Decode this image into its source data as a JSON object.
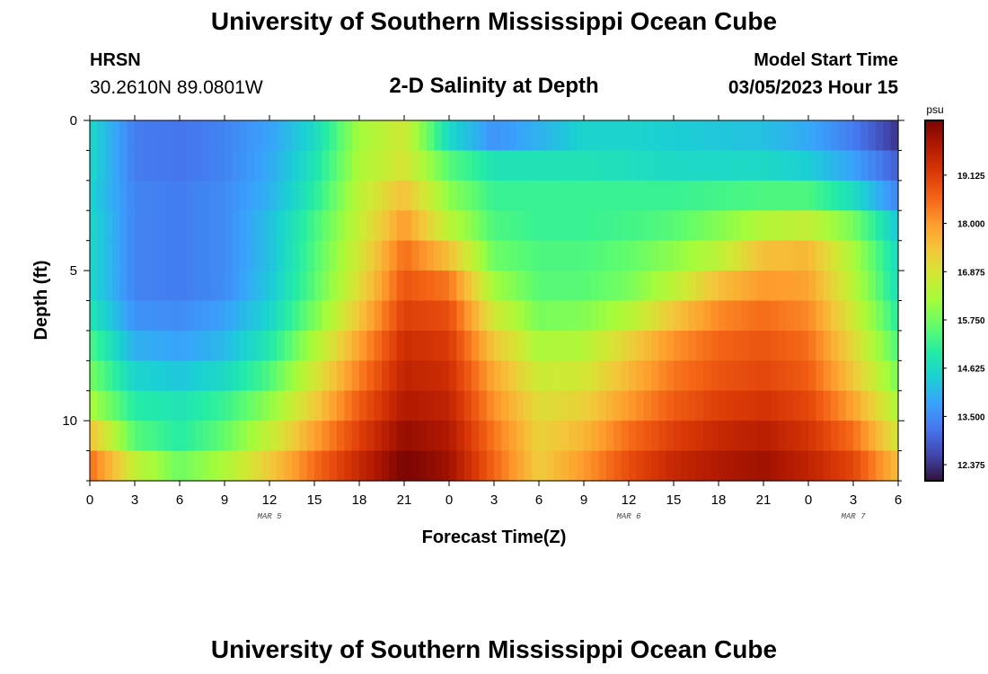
{
  "header": {
    "title": "University of Southern Mississippi Ocean Cube",
    "station": "HRSN",
    "coords": "30.2610N  89.0801W",
    "subtitle": "2-D Salinity at Depth",
    "model_start_label": "Model Start Time",
    "model_start_value": "03/05/2023 Hour 15"
  },
  "footer": {
    "title": "University of Southern Mississippi Ocean Cube"
  },
  "chart_data": {
    "type": "heatmap",
    "title": "2-D Salinity at Depth",
    "xlabel": "Forecast Time(Z)",
    "ylabel": "Depth (ft)",
    "x_range_hours": [
      0,
      54
    ],
    "y_range_ft": [
      0,
      12
    ],
    "y_ticks": [
      0,
      5,
      10
    ],
    "x_tick_labels": [
      "0",
      "3",
      "6",
      "9",
      "12",
      "15",
      "18",
      "21",
      "0",
      "3",
      "6",
      "9",
      "12",
      "15",
      "18",
      "21",
      "0",
      "3",
      "6"
    ],
    "date_labels": [
      {
        "text": "MAR 5",
        "hour": 12
      },
      {
        "text": "MAR 6",
        "hour": 36
      },
      {
        "text": "MAR 7",
        "hour": 51
      }
    ],
    "colorbar": {
      "unit": "psu",
      "min": 12.0,
      "max": 20.4,
      "labels": [
        "19.125",
        "18.000",
        "16.875",
        "15.750",
        "14.625",
        "13.500",
        "12.375"
      ],
      "label_values": [
        19.125,
        18.0,
        16.875,
        15.75,
        14.625,
        13.5,
        12.375
      ],
      "colormap": [
        "#30123b",
        "#4145ab",
        "#4675ed",
        "#39a2fc",
        "#1bcfd4",
        "#24eca6",
        "#61fc6c",
        "#a4fc3b",
        "#d1e834",
        "#f3c63a",
        "#fe9b2d",
        "#f36315",
        "#d93806",
        "#b11901",
        "#7a0402"
      ]
    },
    "depth_layers": [
      0.5,
      1.5,
      2.5,
      3.5,
      4.5,
      5.5,
      6.5,
      7.5,
      8.5,
      9.5,
      10.5,
      11.5
    ],
    "time_keys_hours": [
      0,
      3,
      6,
      9,
      12,
      15,
      18,
      21,
      24,
      27,
      30,
      33,
      36,
      39,
      42,
      45,
      48,
      51,
      54
    ],
    "salinity_psu": [
      [
        14.6,
        13.3,
        13.2,
        13.4,
        13.8,
        14.6,
        16.2,
        16.8,
        14.6,
        13.6,
        14.0,
        14.5,
        14.5,
        14.4,
        14.3,
        14.2,
        13.9,
        13.3,
        12.4
      ],
      [
        14.6,
        13.3,
        13.2,
        13.4,
        13.9,
        14.8,
        16.3,
        16.9,
        15.5,
        14.8,
        14.8,
        14.8,
        14.7,
        14.6,
        14.6,
        14.6,
        14.4,
        13.8,
        12.9
      ],
      [
        14.5,
        13.4,
        13.3,
        13.5,
        14.0,
        15.0,
        16.5,
        17.5,
        16.0,
        15.2,
        15.2,
        15.2,
        15.2,
        15.2,
        15.3,
        15.4,
        15.4,
        14.7,
        13.4
      ],
      [
        14.6,
        13.4,
        13.3,
        13.5,
        14.2,
        15.3,
        16.6,
        18.0,
        16.5,
        15.4,
        15.2,
        15.2,
        15.3,
        15.5,
        15.9,
        16.4,
        16.6,
        15.8,
        14.3
      ],
      [
        14.6,
        13.4,
        13.3,
        13.5,
        14.2,
        15.4,
        16.8,
        18.5,
        17.5,
        15.7,
        15.4,
        15.4,
        15.6,
        16.0,
        16.5,
        17.5,
        17.6,
        16.3,
        14.6
      ],
      [
        14.6,
        13.4,
        13.3,
        13.5,
        14.3,
        15.5,
        17.0,
        18.8,
        18.4,
        16.2,
        15.5,
        15.5,
        15.8,
        16.5,
        17.5,
        18.0,
        17.9,
        16.5,
        14.7
      ],
      [
        14.9,
        13.6,
        13.5,
        13.8,
        14.5,
        15.8,
        17.4,
        19.1,
        18.9,
        16.8,
        15.8,
        15.9,
        16.4,
        17.4,
        18.2,
        18.5,
        18.2,
        16.8,
        15.0
      ],
      [
        15.4,
        14.0,
        13.8,
        14.1,
        14.9,
        16.3,
        17.9,
        19.4,
        19.2,
        17.4,
        16.3,
        16.4,
        17.2,
        18.1,
        18.6,
        18.8,
        18.5,
        17.1,
        15.4
      ],
      [
        15.8,
        14.5,
        14.3,
        14.6,
        15.4,
        16.8,
        18.3,
        19.6,
        19.4,
        17.8,
        16.7,
        16.8,
        17.6,
        18.4,
        18.8,
        19.0,
        18.7,
        17.4,
        15.8
      ],
      [
        16.3,
        15.0,
        14.8,
        15.2,
        16.0,
        17.3,
        18.7,
        19.8,
        19.6,
        18.1,
        17.0,
        17.2,
        18.0,
        18.7,
        19.1,
        19.3,
        19.0,
        17.9,
        16.3
      ],
      [
        17.5,
        15.5,
        15.0,
        15.6,
        16.6,
        17.9,
        19.1,
        20.1,
        19.8,
        18.4,
        17.2,
        17.6,
        18.5,
        19.1,
        19.5,
        19.7,
        19.3,
        18.5,
        16.8
      ],
      [
        18.5,
        16.6,
        15.7,
        16.3,
        17.3,
        18.5,
        19.5,
        20.4,
        20.0,
        18.6,
        17.3,
        18.0,
        18.9,
        19.5,
        19.8,
        20.0,
        19.6,
        19.0,
        17.5
      ]
    ]
  }
}
